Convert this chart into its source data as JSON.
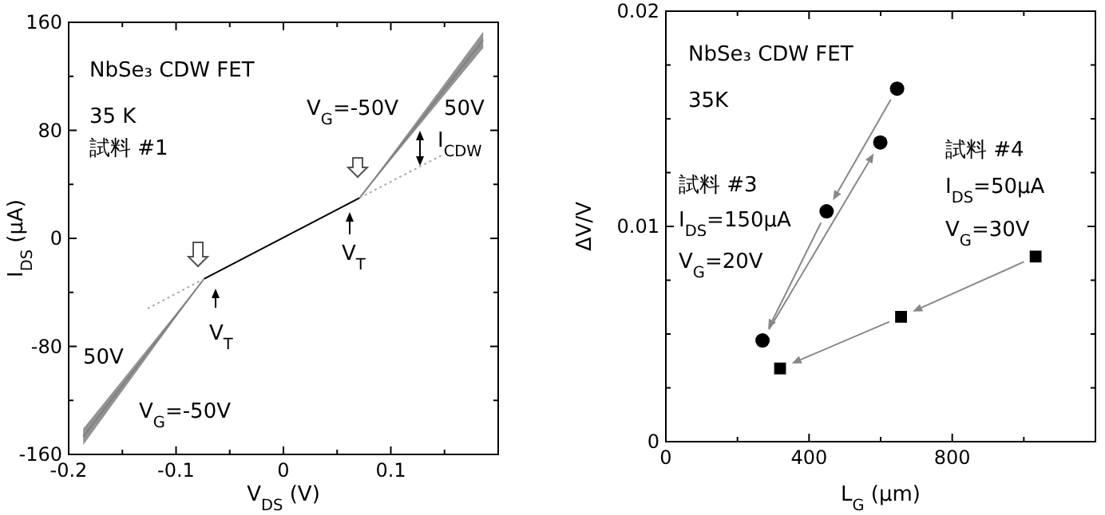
{
  "chart_data": [
    {
      "type": "line",
      "xlabel": "V$_{DS}$ (V)",
      "ylabel": "I$_{DS}$ (μA)",
      "xlim": [
        -0.2,
        0.2
      ],
      "ylim": [
        -160,
        160
      ],
      "xticks": [
        -0.2,
        {
          "value": -0.15,
          "label": null
        },
        -0.1,
        {
          "value": -0.05,
          "label": null
        },
        0,
        {
          "value": 0.05,
          "label": null
        },
        0.1,
        {
          "value": 0.15,
          "label": null
        },
        {
          "value": 0.2,
          "label": null
        }
      ],
      "yticks": [
        -160,
        {
          "value": -120,
          "label": null
        },
        -80,
        {
          "value": -40,
          "label": null
        },
        0,
        {
          "value": 40,
          "label": null
        },
        80,
        {
          "value": 120,
          "label": null
        },
        160
      ],
      "annotations": [
        "NbSe₃ CDW FET",
        "35 K",
        "試料 #1",
        "V$_{G}$=-50V",
        "50V",
        "I$_{CDW}$",
        "V$_{T}$",
        "V$_{T}$",
        "50V",
        "V$_{G}$=-50V"
      ],
      "series": [
        {
          "color": "#000000",
          "line_style": "solid",
          "x": [
            -0.074,
            0.071
          ],
          "values": [
            -30,
            30
          ]
        },
        {
          "color": "#808080",
          "line_style": "solid",
          "x": [
            0.071,
            0.186
          ],
          "values": [
            30,
            147
          ],
          "lower": [
            30,
            141
          ],
          "upper": [
            30,
            153
          ]
        },
        {
          "color": "#808080",
          "line_style": "solid",
          "x": [
            -0.1865,
            -0.074
          ],
          "values": [
            -147,
            -30
          ],
          "lower": [
            -153,
            -30
          ],
          "upper": [
            -141,
            -30
          ]
        },
        {
          "color": "#aaaaaa",
          "line_style": "dotted",
          "x": [
            -0.1265,
            -0.074
          ],
          "values": [
            -52,
            -30
          ]
        },
        {
          "color": "#aaaaaa",
          "line_style": "dotted",
          "x": [
            0.071,
            0.1485
          ],
          "values": [
            30,
            62
          ]
        }
      ]
    },
    {
      "type": "scatter",
      "xlabel": "L$_{G}$ (μm)",
      "ylabel": "ΔV/V",
      "xlim": [
        0,
        1200
      ],
      "ylim": [
        0,
        0.02
      ],
      "xticks": [
        0,
        {
          "value": 200,
          "label": null
        },
        400,
        {
          "value": 600,
          "label": null
        },
        800,
        {
          "value": 1000,
          "label": null
        }
      ],
      "yticks": [
        0,
        {
          "value": 0.0025,
          "label": null
        },
        {
          "value": 0.005,
          "label": null
        },
        {
          "value": 0.0075,
          "label": null
        },
        0.01,
        {
          "value": 0.0125,
          "label": null
        },
        {
          "value": 0.015,
          "label": null
        },
        {
          "value": 0.0175,
          "label": null
        },
        0.02
      ],
      "annotations": [
        "NbSe₃ CDW FET",
        "35K",
        "試料 #3",
        "I$_{DS}$=150μA",
        "V$_{G}$=20V",
        "試料 #4",
        "I$_{DS}$=50μA",
        "V$_{G}$=30V"
      ],
      "series": [
        {
          "color": "#000000",
          "marker": "circle",
          "x": [
            646,
            599,
            449,
            270
          ],
          "values": [
            0.0164,
            0.0139,
            0.0107,
            0.0047
          ]
        },
        {
          "color": "#000000",
          "marker": "square",
          "x": [
            1033,
            657,
            319
          ],
          "values": [
            0.0086,
            0.0058,
            0.0034
          ]
        }
      ]
    }
  ]
}
